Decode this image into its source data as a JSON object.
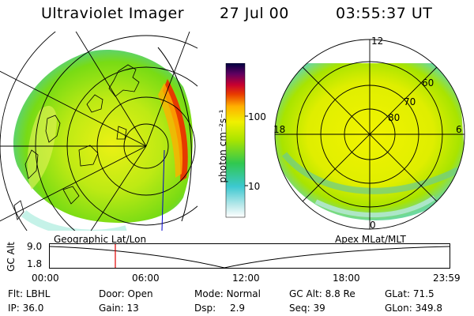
{
  "header": {
    "instrument": "Ultraviolet Imager",
    "date": "27 Jul 00",
    "time": "03:55:37 UT"
  },
  "colorbar": {
    "unit_label": "photon cm⁻²s⁻¹",
    "tick_labels": [
      "100",
      "10"
    ],
    "scale": "log"
  },
  "left_panel": {
    "caption": "Geographic Lat/Lon"
  },
  "right_panel": {
    "caption": "Apex MLat/MLT",
    "mlat_labels": [
      "60",
      "70",
      "80"
    ],
    "mlt_labels": {
      "top": "12",
      "left": "18",
      "right": "6",
      "bottom": "0"
    }
  },
  "altitude_strip": {
    "ylabel": "GC Alt",
    "y_ticks": [
      "9.0",
      "1.8"
    ],
    "x_ticks": [
      "00:00",
      "06:00",
      "12:00",
      "18:00",
      "23:59"
    ],
    "current_time_fraction": 0.164
  },
  "status": {
    "row1": [
      {
        "key": "Flt:",
        "value": "LBHL"
      },
      {
        "key": "Door:",
        "value": "Open"
      },
      {
        "key": "Mode:",
        "value": "Normal"
      },
      {
        "key": "GC Alt:",
        "value": "8.8 Re"
      },
      {
        "key": "GLat:",
        "value": "71.5"
      }
    ],
    "row2": [
      {
        "key": "IP:",
        "value": "36.0"
      },
      {
        "key": "Gain:",
        "value": "13"
      },
      {
        "key": "Dsp:",
        "value": "2.9"
      },
      {
        "key": "Seq:",
        "value": "39"
      },
      {
        "key": "GLon:",
        "value": "349.8"
      }
    ]
  }
}
